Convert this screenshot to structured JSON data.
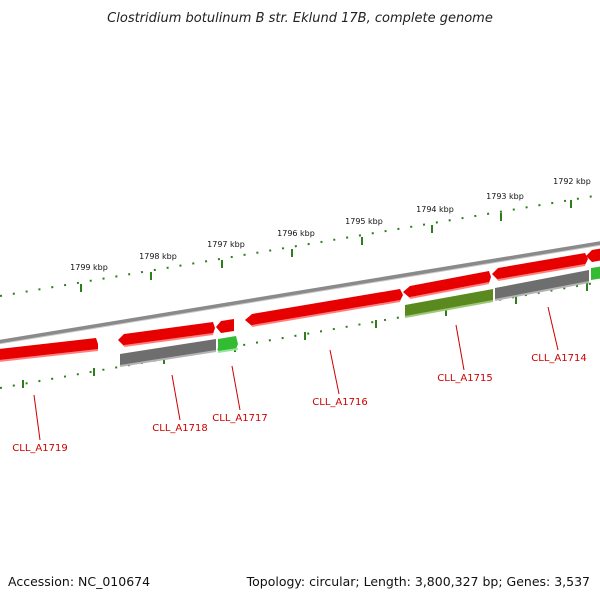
{
  "title": "Clostridium botulinum B str. Eklund 17B, complete genome",
  "footer": {
    "accession": "Accession: NC_010674",
    "summary": "Topology: circular; Length: 3,800,327 bp; Genes: 3,537"
  },
  "colors": {
    "forward_gene": "#e60000",
    "gene_edge": "#ff7f7f",
    "reverse_gray": "#6e6e6e",
    "reverse_green": "#33bb33",
    "reverse_olive": "#5a8a1f",
    "backbone": "#8a8a8a",
    "tick": "#2e7d1e",
    "label": "#cc0000"
  },
  "scale_labels": [
    "1799 kbp",
    "1798 kbp",
    "1797 kbp",
    "1796 kbp",
    "1795 kbp",
    "1794 kbp",
    "1793 kbp",
    "1792 kbp"
  ],
  "gene_labels": [
    "CLL_A1719",
    "CLL_A1718",
    "CLL_A1717",
    "CLL_A1716",
    "CLL_A1715",
    "CLL_A1714"
  ]
}
